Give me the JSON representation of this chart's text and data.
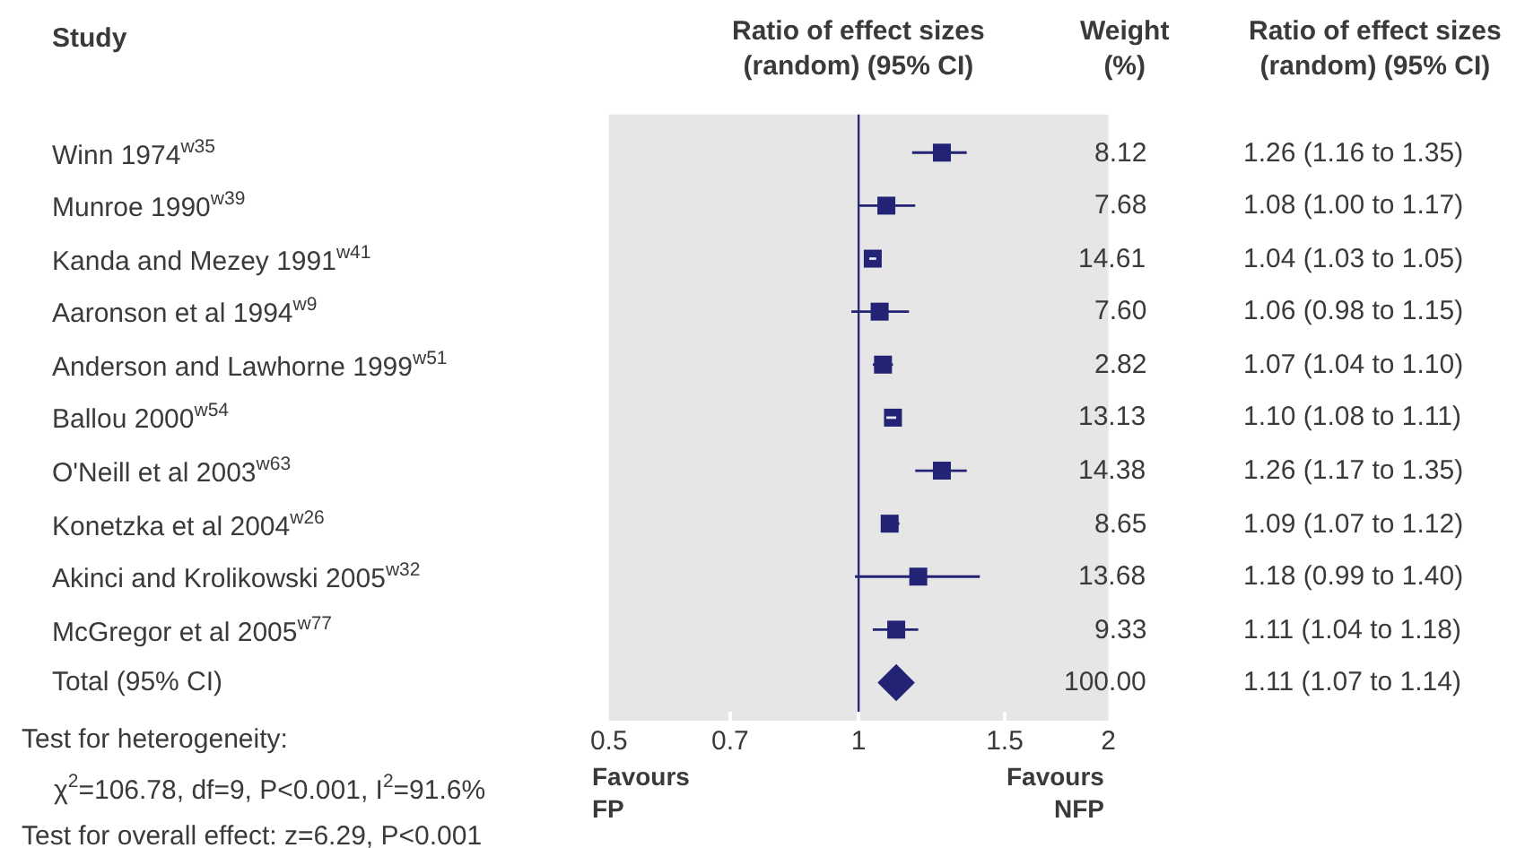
{
  "chart_data": {
    "type": "scatter",
    "orientation": "horizontal",
    "ylabel": "Study",
    "xlabel": "Ratio of effect sizes\n(random) (95% CI)",
    "categories": [
      "Winn 1974$^{w35}$",
      "Munroe 1990$^{w39}$",
      "Kanda and Mezey 1991$^{w41}$",
      "Aaronson et al 1994$^{w9}$",
      "Anderson and Lawhorne 1999$^{w51}$",
      "Ballou 2000$^{w54}$",
      "O'Neill et al 2003$^{w63}$",
      "Konetzka et al 2004$^{w26}$",
      "Akinci and Krolikowski 2005$^{w32}$",
      "McGregor et al 2005$^{w77}$",
      "Total (95% CI)"
    ],
    "series": [
      {
        "color": "#232375",
        "marker": "square",
        "values": [
          1.26,
          1.08,
          1.04,
          1.06,
          1.07,
          1.1,
          1.26,
          1.09,
          1.18,
          1.11,
          null
        ],
        "errors": [
          [
            1.16,
            1.35
          ],
          [
            1.0,
            1.17
          ],
          [
            1.03,
            1.05
          ],
          [
            0.98,
            1.15
          ],
          [
            1.04,
            1.1
          ],
          [
            1.08,
            1.11
          ],
          [
            1.17,
            1.35
          ],
          [
            1.07,
            1.12
          ],
          [
            0.99,
            1.4
          ],
          [
            1.04,
            1.18
          ],
          null
        ],
        "value_labels": [
          "1.26 (1.16 to 1.35)",
          "1.08 (1.00 to 1.17)",
          "1.04 (1.03 to 1.05)",
          "1.06 (0.98 to 1.15)",
          "1.07 (1.04 to 1.10)",
          "1.10 (1.08 to 1.11)",
          "1.26 (1.17 to 1.35)",
          "1.09 (1.07 to 1.12)",
          "1.18 (0.99 to 1.40)",
          "1.11 (1.04 to 1.18)",
          null
        ]
      },
      {
        "color": "#232375",
        "marker": "diamond",
        "values": [
          null,
          null,
          null,
          null,
          null,
          null,
          null,
          null,
          null,
          null,
          1.11
        ],
        "errors": [
          null,
          null,
          null,
          null,
          null,
          null,
          null,
          null,
          null,
          null,
          [
            1.07,
            1.14
          ]
        ]
      }
    ],
    "log": "x",
    "xlim": [
      0.5,
      2
    ],
    "xticks": [
      0.5,
      0.7,
      1,
      1.5,
      2
    ],
    "ref_lines": [
      {
        "axis": "x",
        "value": 1,
        "color": "#2b2b7a"
      }
    ],
    "grid": false,
    "annotations": [
      "Weight\n(%)",
      "Ratio of effect sizes\n(random) (95% CI)",
      "Test for heterogeneity:",
      "χ$^{2}$=106.78, df=9, P<0.001, I$^{2}$=91.6%",
      "Test for overall effect: z=6.29, P<0.001",
      "Favours\nFP",
      "Favours\nNFP",
      "1.11 (1.07 to 1.14)",
      "8.12",
      "7.68",
      "14.61",
      "7.60",
      "2.82",
      "13.13",
      "14.38",
      "8.65",
      "13.68",
      "9.33",
      "100.00"
    ]
  }
}
